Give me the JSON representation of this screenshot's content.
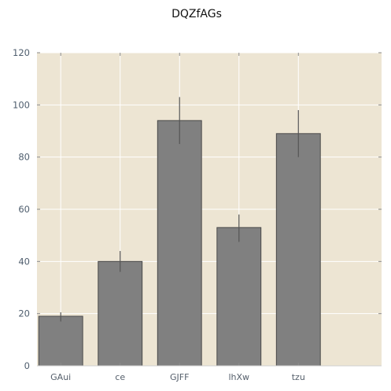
{
  "chart_data": {
    "type": "bar",
    "title": "DQZfAGs",
    "xlabel": "",
    "ylabel": "",
    "categories": [
      "GAui",
      "ce",
      "GJFF",
      "lhXw",
      "tzu"
    ],
    "values": [
      19,
      40,
      94,
      53,
      89
    ],
    "error": [
      [
        17,
        20.5
      ],
      [
        36,
        44
      ],
      [
        85,
        103
      ],
      [
        47.5,
        58
      ],
      [
        80,
        98
      ]
    ],
    "ylim": [
      0,
      120
    ],
    "yticks": [
      0,
      20,
      40,
      60,
      80,
      100,
      120
    ],
    "grid": true,
    "legend": "none",
    "colors": {
      "bar_fill": "#808080",
      "bar_edge": "#4a4a4a",
      "plot_bg": "#ede5d3",
      "grid": "#ffffff",
      "error_bar": "#555555",
      "axis_line": "#d0d0d0"
    }
  }
}
